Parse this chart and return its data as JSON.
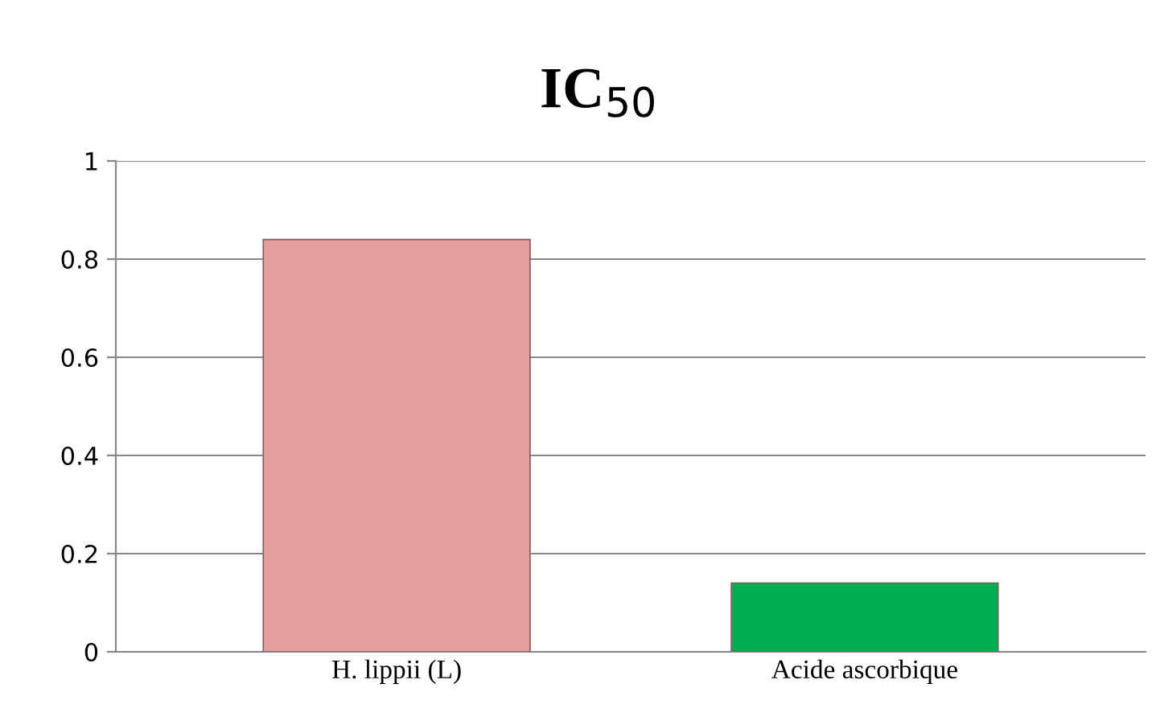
{
  "chart_data": {
    "type": "bar",
    "title": "IC$_{50}$",
    "categories": [
      "H. lippii (L)",
      "Acide ascorbique"
    ],
    "values": [
      0.84,
      0.14
    ],
    "colors": [
      "#e59e9e",
      "#00b050"
    ],
    "ylim": [
      0,
      1
    ],
    "yticks": [
      0,
      0.2,
      0.4,
      0.6,
      0.8,
      1
    ],
    "grid": "y"
  }
}
